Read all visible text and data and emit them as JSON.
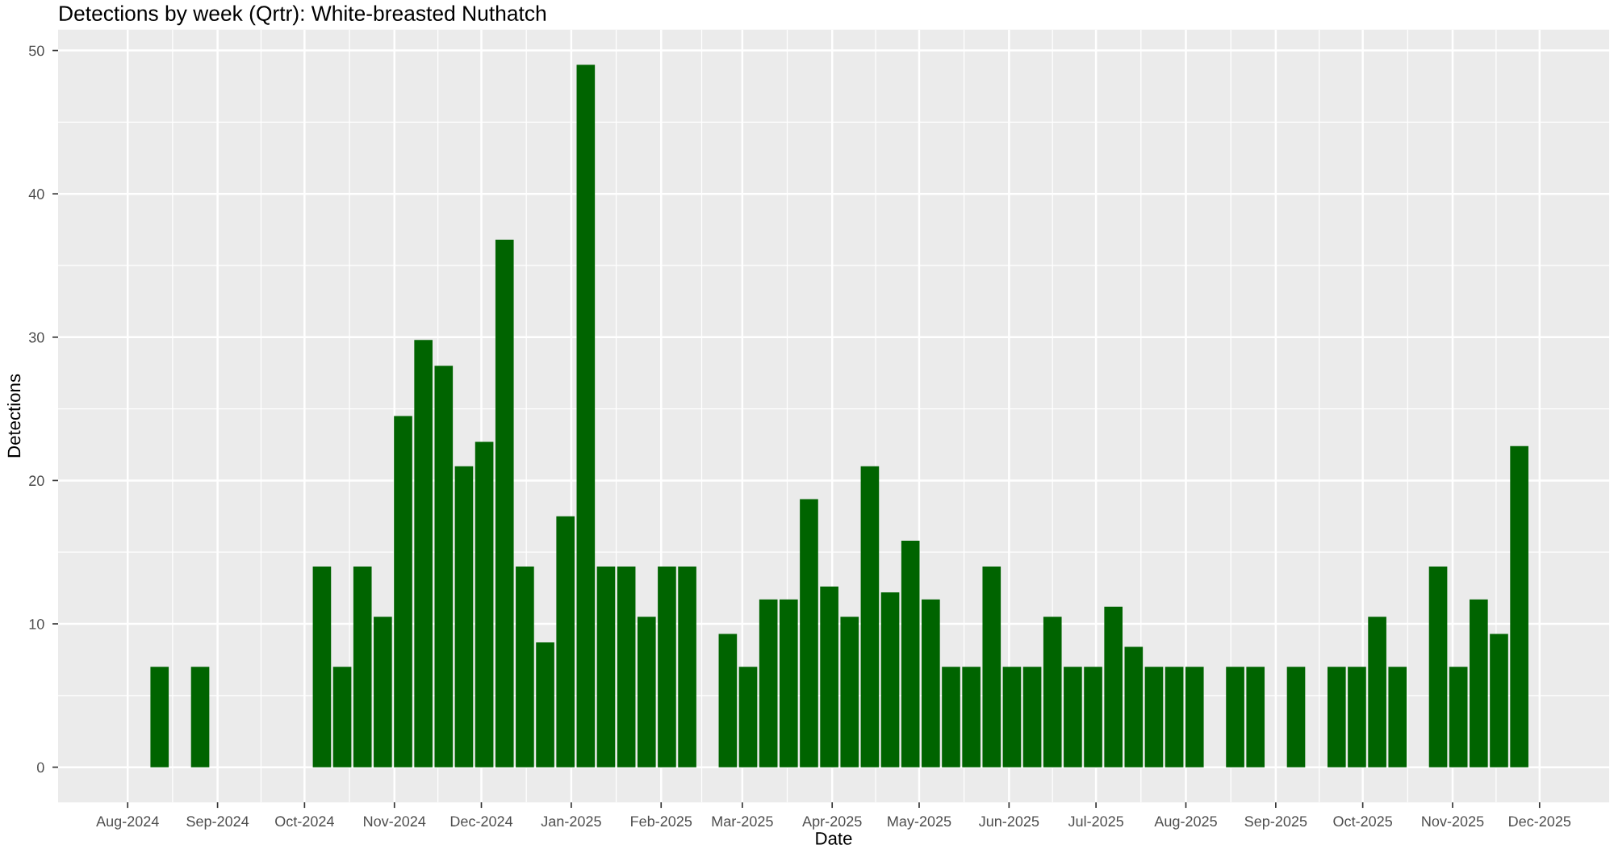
{
  "chart_data": {
    "type": "bar",
    "title": "Detections by week (Qrtr): White-breasted Nuthatch",
    "xlabel": "Date",
    "ylabel": "Detections",
    "color": "#006400",
    "x": [
      "2024-08-12",
      "2024-08-26",
      "2024-10-07",
      "2024-10-14",
      "2024-10-21",
      "2024-10-28",
      "2024-11-04",
      "2024-11-11",
      "2024-11-18",
      "2024-11-25",
      "2024-12-02",
      "2024-12-09",
      "2024-12-16",
      "2024-12-23",
      "2024-12-30",
      "2025-01-06",
      "2025-01-13",
      "2025-01-20",
      "2025-01-27",
      "2025-02-03",
      "2025-02-10",
      "2025-02-24",
      "2025-03-03",
      "2025-03-10",
      "2025-03-17",
      "2025-03-24",
      "2025-03-31",
      "2025-04-07",
      "2025-04-14",
      "2025-04-21",
      "2025-04-28",
      "2025-05-05",
      "2025-05-12",
      "2025-05-19",
      "2025-05-26",
      "2025-06-02",
      "2025-06-09",
      "2025-06-16",
      "2025-06-23",
      "2025-06-30",
      "2025-07-07",
      "2025-07-14",
      "2025-07-21",
      "2025-07-28",
      "2025-08-04",
      "2025-08-18",
      "2025-08-25",
      "2025-09-08",
      "2025-09-22",
      "2025-09-29",
      "2025-10-06",
      "2025-10-13",
      "2025-10-27",
      "2025-11-03",
      "2025-11-10",
      "2025-11-17",
      "2025-11-24"
    ],
    "values": [
      7,
      7,
      14,
      7,
      14,
      10.5,
      24.5,
      29.8,
      28,
      21,
      22.7,
      36.8,
      14,
      8.7,
      17.5,
      49,
      14,
      14,
      10.5,
      14,
      14,
      9.3,
      7,
      11.7,
      11.7,
      18.7,
      12.6,
      10.5,
      21,
      12.2,
      15.8,
      11.7,
      7,
      7,
      14,
      7,
      7,
      10.5,
      7,
      7,
      11.2,
      8.4,
      7,
      7,
      7,
      7,
      7,
      7,
      7,
      7,
      10.5,
      7,
      14,
      7,
      11.7,
      9.3,
      22.4
    ],
    "xlim": [
      "2024-07-08",
      "2025-12-25"
    ],
    "xticks": [
      {
        "value": "2024-08-01",
        "label": "Aug-2024"
      },
      {
        "value": "2024-09-01",
        "label": "Sep-2024"
      },
      {
        "value": "2024-10-01",
        "label": "Oct-2024"
      },
      {
        "value": "2024-11-01",
        "label": "Nov-2024"
      },
      {
        "value": "2024-12-01",
        "label": "Dec-2024"
      },
      {
        "value": "2025-01-01",
        "label": "Jan-2025"
      },
      {
        "value": "2025-02-01",
        "label": "Feb-2025"
      },
      {
        "value": "2025-03-01",
        "label": "Mar-2025"
      },
      {
        "value": "2025-04-01",
        "label": "Apr-2025"
      },
      {
        "value": "2025-05-01",
        "label": "May-2025"
      },
      {
        "value": "2025-06-01",
        "label": "Jun-2025"
      },
      {
        "value": "2025-07-01",
        "label": "Jul-2025"
      },
      {
        "value": "2025-08-01",
        "label": "Aug-2025"
      },
      {
        "value": "2025-09-01",
        "label": "Sep-2025"
      },
      {
        "value": "2025-10-01",
        "label": "Oct-2025"
      },
      {
        "value": "2025-11-01",
        "label": "Nov-2025"
      },
      {
        "value": "2025-12-01",
        "label": "Dec-2025"
      }
    ],
    "ylim": [
      -2.45,
      51.45
    ],
    "yticks": [
      0,
      10,
      20,
      30,
      40,
      50
    ],
    "grid": true
  }
}
